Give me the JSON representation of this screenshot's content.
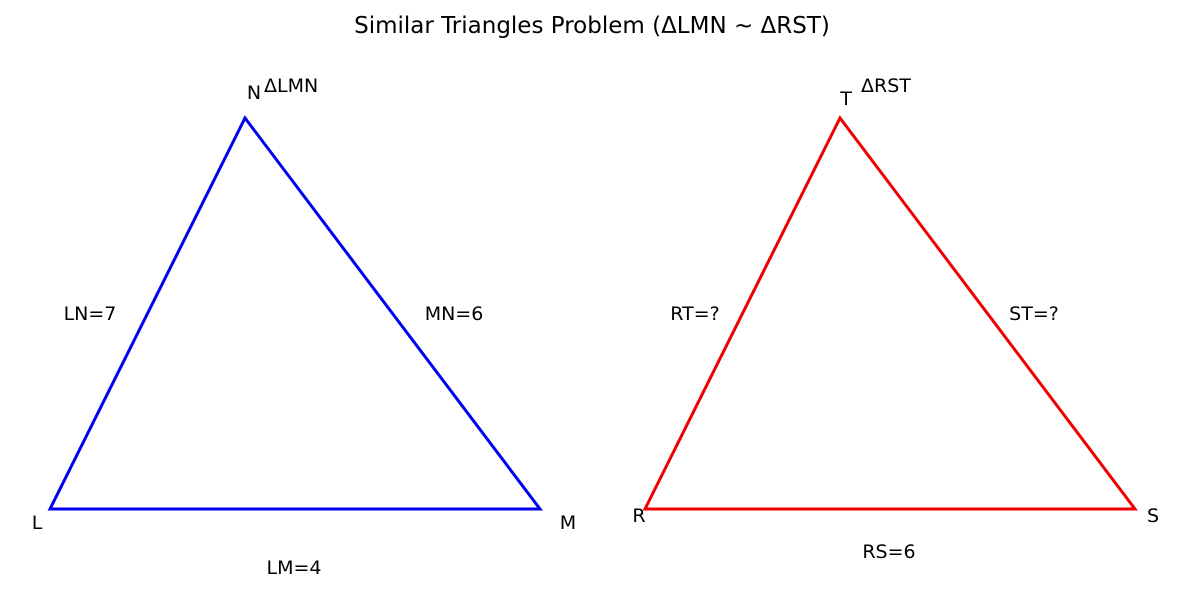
{
  "title": "Similar Triangles Problem (ΔLMN ~ ΔRST)",
  "triangles": {
    "lmn": {
      "name": "ΔLMN",
      "color": "#0000ee",
      "vertices": {
        "a": "L",
        "b": "M",
        "c": "N"
      },
      "sides": {
        "base": "LM=4",
        "left": "LN=7",
        "right": "MN=6"
      }
    },
    "rst": {
      "name": "ΔRST",
      "color": "#ee0000",
      "vertices": {
        "a": "R",
        "b": "S",
        "c": "T"
      },
      "sides": {
        "base": "RS=6",
        "left": "RT=?",
        "right": "ST=?"
      }
    }
  }
}
